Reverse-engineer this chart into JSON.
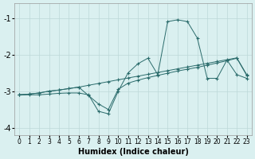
{
  "xlabel": "Humidex (Indice chaleur)",
  "xlim": [
    -0.5,
    23.5
  ],
  "ylim": [
    -4.2,
    -0.6
  ],
  "yticks": [
    -4,
    -3,
    -2,
    -1
  ],
  "xticks": [
    0,
    1,
    2,
    3,
    4,
    5,
    6,
    7,
    8,
    9,
    10,
    11,
    12,
    13,
    14,
    15,
    16,
    17,
    18,
    19,
    20,
    21,
    22,
    23
  ],
  "bg_color": "#daf0f0",
  "line_color": "#2a6b6b",
  "grid_color": "#bcd8d8",
  "line1_x": [
    0,
    1,
    2,
    3,
    4,
    5,
    6,
    7,
    8,
    9,
    10,
    11,
    12,
    13,
    14,
    15,
    16,
    17,
    18,
    19,
    20,
    21,
    22,
    23
  ],
  "line1_y": [
    -3.1,
    -3.1,
    -3.1,
    -3.08,
    -3.06,
    -3.05,
    -3.05,
    -3.1,
    -3.55,
    -3.62,
    -3.0,
    -2.5,
    -2.25,
    -2.1,
    -2.55,
    -1.1,
    -1.05,
    -1.1,
    -1.55,
    -2.65,
    -2.65,
    -2.15,
    -2.55,
    -2.65
  ],
  "line2_x": [
    0,
    1,
    2,
    3,
    4,
    5,
    6,
    7,
    8,
    9,
    10,
    11,
    12,
    13,
    14,
    15,
    16,
    17,
    18,
    19,
    20,
    21,
    22,
    23
  ],
  "line2_y": [
    -3.1,
    -3.08,
    -3.05,
    -3.0,
    -2.97,
    -2.93,
    -2.89,
    -2.84,
    -2.79,
    -2.74,
    -2.69,
    -2.64,
    -2.59,
    -2.54,
    -2.49,
    -2.44,
    -2.39,
    -2.34,
    -2.29,
    -2.24,
    -2.19,
    -2.14,
    -2.09,
    -2.55
  ],
  "line3_x": [
    0,
    1,
    2,
    3,
    4,
    5,
    6,
    7,
    8,
    9,
    10,
    11,
    12,
    13,
    14,
    15,
    16,
    17,
    18,
    19,
    20,
    21,
    22,
    23
  ],
  "line3_y": [
    -3.1,
    -3.08,
    -3.05,
    -3.0,
    -2.97,
    -2.93,
    -2.89,
    -3.12,
    -3.35,
    -3.5,
    -2.95,
    -2.78,
    -2.7,
    -2.63,
    -2.57,
    -2.51,
    -2.45,
    -2.4,
    -2.35,
    -2.29,
    -2.23,
    -2.17,
    -2.1,
    -2.57
  ]
}
